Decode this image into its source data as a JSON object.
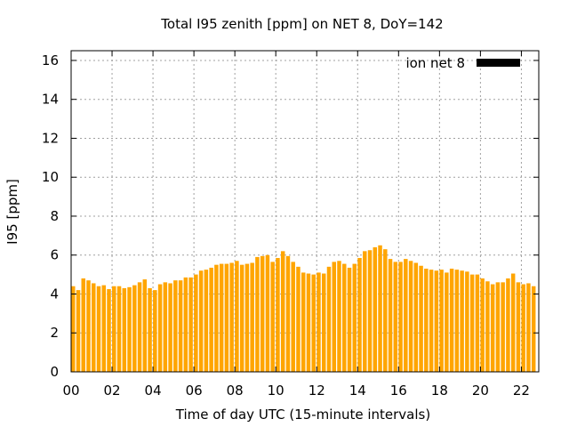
{
  "chart_data": {
    "type": "bar",
    "title": "Total I95 zenith [ppm] on NET 8, DoY=142",
    "xlabel": "Time of day UTC (15-minute intervals)",
    "ylabel": "I95 [ppm]",
    "xlim": [
      0,
      22.85
    ],
    "ylim": [
      0,
      16.5
    ],
    "x_ticks": [
      0,
      2,
      4,
      6,
      8,
      10,
      12,
      14,
      16,
      18,
      20,
      22
    ],
    "x_tick_labels": [
      "00",
      "02",
      "04",
      "06",
      "08",
      "10",
      "12",
      "14",
      "16",
      "18",
      "20",
      "22"
    ],
    "y_ticks": [
      0,
      2,
      4,
      6,
      8,
      10,
      12,
      14,
      16
    ],
    "y_tick_labels": [
      "0",
      "2",
      "4",
      "6",
      "8",
      "10",
      "12",
      "14",
      "16"
    ],
    "grid": true,
    "legend_position": "top-right",
    "series": [
      {
        "name": "ion net 8",
        "bar_color": "#ffa500",
        "legend_color": "#000000",
        "x": [
          0,
          0.25,
          0.5,
          0.75,
          1,
          1.25,
          1.5,
          1.75,
          2,
          2.25,
          2.5,
          2.75,
          3,
          3.25,
          3.5,
          3.75,
          4,
          4.25,
          4.5,
          4.75,
          5,
          5.25,
          5.5,
          5.75,
          6,
          6.25,
          6.5,
          6.75,
          7,
          7.25,
          7.5,
          7.75,
          8,
          8.25,
          8.5,
          8.75,
          9,
          9.25,
          9.5,
          9.75,
          10,
          10.25,
          10.5,
          10.75,
          11,
          11.25,
          11.5,
          11.75,
          12,
          12.25,
          12.5,
          12.75,
          13,
          13.25,
          13.5,
          13.75,
          14,
          14.25,
          14.5,
          14.75,
          15,
          15.25,
          15.5,
          15.75,
          16,
          16.25,
          16.5,
          16.75,
          17,
          17.25,
          17.5,
          17.75,
          18,
          18.25,
          18.5,
          18.75,
          19,
          19.25,
          19.5,
          19.75,
          20,
          20.25,
          20.5,
          20.75,
          21,
          21.25,
          21.5,
          21.75,
          22,
          22.25,
          22.5
        ],
        "values": [
          4.4,
          4.2,
          4.8,
          4.7,
          4.55,
          4.4,
          4.45,
          4.25,
          4.4,
          4.4,
          4.3,
          4.35,
          4.45,
          4.6,
          4.75,
          4.3,
          4.2,
          4.5,
          4.6,
          4.55,
          4.7,
          4.7,
          4.85,
          4.85,
          5.0,
          5.2,
          5.25,
          5.35,
          5.5,
          5.55,
          5.55,
          5.6,
          5.7,
          5.5,
          5.55,
          5.6,
          5.9,
          5.95,
          6.0,
          5.65,
          5.85,
          6.2,
          5.95,
          5.65,
          5.4,
          5.1,
          5.05,
          5.0,
          5.1,
          5.05,
          5.4,
          5.65,
          5.7,
          5.55,
          5.35,
          5.55,
          5.85,
          6.2,
          6.25,
          6.4,
          6.5,
          6.3,
          5.8,
          5.65,
          5.65,
          5.8,
          5.7,
          5.6,
          5.45,
          5.3,
          5.25,
          5.2,
          5.25,
          5.1,
          5.3,
          5.25,
          5.2,
          5.15,
          5.0,
          5.0,
          4.8,
          4.65,
          4.5,
          4.6,
          4.6,
          4.8,
          5.05,
          4.6,
          4.5,
          4.55,
          4.4
        ]
      }
    ]
  }
}
